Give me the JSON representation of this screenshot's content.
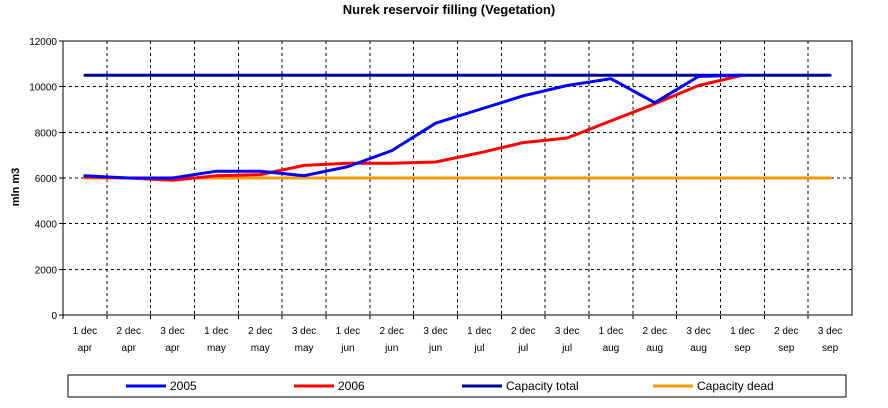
{
  "chart_data": {
    "type": "line",
    "title": "Nurek reservoir filling (Vegetation)",
    "ylabel": "mln m3",
    "xlabel": "",
    "ylim": [
      0,
      12000
    ],
    "yticks": [
      0,
      2000,
      4000,
      6000,
      8000,
      10000,
      12000
    ],
    "grid": true,
    "legend_position": "bottom",
    "categories": [
      [
        "1 dec",
        "apr"
      ],
      [
        "2 dec",
        "apr"
      ],
      [
        "3 dec",
        "apr"
      ],
      [
        "1 dec",
        "may"
      ],
      [
        "2 dec",
        "may"
      ],
      [
        "3 dec",
        "may"
      ],
      [
        "1 dec",
        "jun"
      ],
      [
        "2 dec",
        "jun"
      ],
      [
        "3 dec",
        "jun"
      ],
      [
        "1 dec",
        "jul"
      ],
      [
        "2 dec",
        "jul"
      ],
      [
        "3 dec",
        "jul"
      ],
      [
        "1 dec",
        "aug"
      ],
      [
        "2 dec",
        "aug"
      ],
      [
        "3 dec",
        "aug"
      ],
      [
        "1 dec",
        "sep"
      ],
      [
        "2 dec",
        "sep"
      ],
      [
        "3 dec",
        "sep"
      ]
    ],
    "series": [
      {
        "name": "2005",
        "color": "#0000ff",
        "values": [
          6100,
          6000,
          6000,
          6300,
          6300,
          6100,
          6500,
          7200,
          8400,
          9000,
          9600,
          10050,
          10350,
          9300,
          10450,
          10500,
          null,
          null
        ]
      },
      {
        "name": "2006",
        "color": "#ff0000",
        "values": [
          6050,
          6000,
          5900,
          6100,
          6150,
          6550,
          6650,
          6650,
          6700,
          7100,
          7550,
          7750,
          8500,
          9250,
          10050,
          10500,
          null,
          null
        ]
      },
      {
        "name": "Capacity total",
        "color": "#000099",
        "values": [
          10500,
          10500,
          10500,
          10500,
          10500,
          10500,
          10500,
          10500,
          10500,
          10500,
          10500,
          10500,
          10500,
          10500,
          10500,
          10500,
          10500,
          10500
        ]
      },
      {
        "name": "Capacity dead",
        "color": "#ff9900",
        "values": [
          6000,
          6000,
          6000,
          6000,
          6000,
          6000,
          6000,
          6000,
          6000,
          6000,
          6000,
          6000,
          6000,
          6000,
          6000,
          6000,
          6000,
          6000
        ]
      }
    ]
  }
}
